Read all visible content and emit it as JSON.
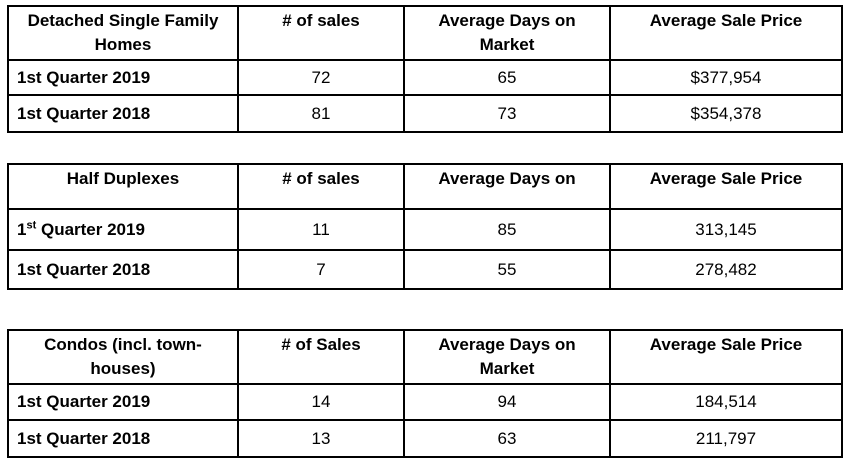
{
  "tables": [
    {
      "header": [
        "Detached Single Family Homes",
        "# of sales",
        "Average Days on Market",
        "Average Sale Price"
      ],
      "rows": [
        [
          {
            "text": "1st Quarter 2019"
          },
          "72",
          "65",
          "$377,954"
        ],
        [
          {
            "text": "1st Quarter 2018"
          },
          "81",
          "73",
          "$354,378"
        ]
      ]
    },
    {
      "header": [
        "Half Duplexes",
        "# of sales",
        "Average Days on",
        "Average Sale Price"
      ],
      "rows": [
        [
          {
            "pre": "1",
            "sup": "st",
            "post": " Quarter 2019"
          },
          "11",
          "85",
          "313,145"
        ],
        [
          {
            "text": "1st Quarter 2018"
          },
          "7",
          "55",
          "278,482"
        ]
      ]
    },
    {
      "header": [
        "Condos (incl. town-houses)",
        "# of Sales",
        "Average Days on Market",
        "Average Sale Price"
      ],
      "rows": [
        [
          {
            "text": "1st Quarter 2019"
          },
          "14",
          "94",
          "184,514"
        ],
        [
          {
            "text": "1st Quarter 2018"
          },
          "13",
          "63",
          "211,797"
        ]
      ]
    }
  ]
}
